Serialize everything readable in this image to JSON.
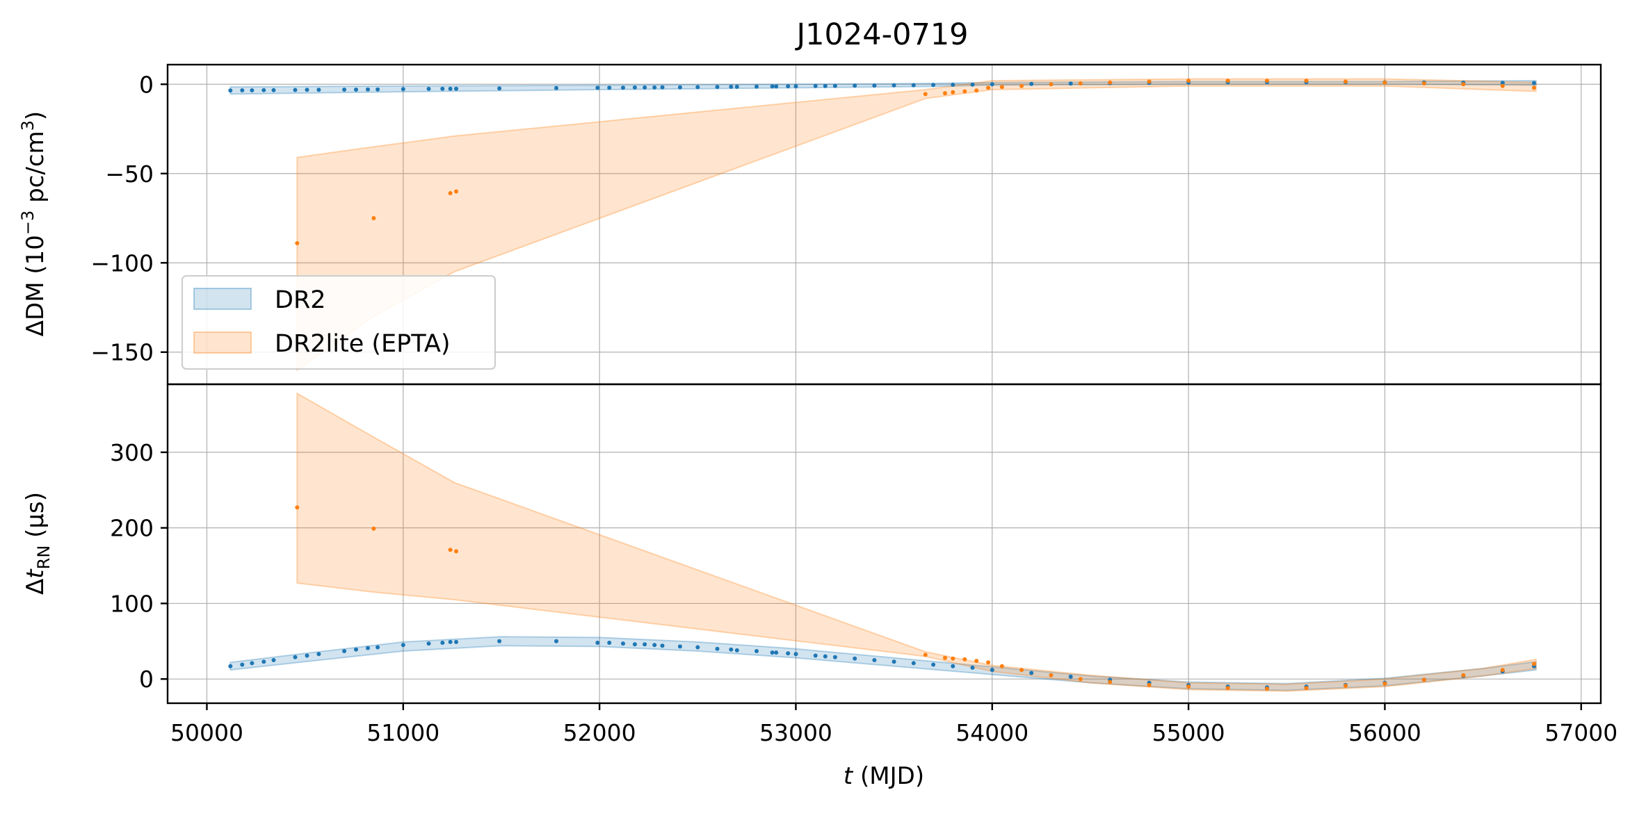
{
  "chart_data": {
    "type": "scatter",
    "title": "J1024-0719",
    "xlabel": {
      "italic": "t",
      "rest": " (MJD)"
    },
    "x_ticks": [
      50000,
      51000,
      52000,
      53000,
      54000,
      55000,
      56000,
      57000
    ],
    "xlim": [
      49800,
      57100
    ],
    "legend": {
      "placement": "lower-left of top panel",
      "entries": [
        "DR2",
        "DR2lite (EPTA)"
      ]
    },
    "colors": {
      "DR2": "#1f77b4",
      "DR2lite (EPTA)": "#ff7f0e"
    },
    "grid": true,
    "panels": [
      {
        "id": "dm",
        "ylabel": {
          "pre": "ΔDM (10",
          "sup1": "−3",
          "mid": " pc/cm",
          "sup2": "3",
          "post": ")"
        },
        "ylim": [
          -168,
          11
        ],
        "y_ticks": [
          0,
          -50,
          -100,
          -150
        ],
        "series": [
          {
            "name": "DR2",
            "band": {
              "x": [
                50120,
                51000,
                52000,
                53000,
                53700,
                54000,
                55000,
                56000,
                56770
              ],
              "lo": [
                -5.5,
                -4.2,
                -3,
                -2,
                -1.2,
                -0.5,
                0,
                0,
                -0.5
              ],
              "hi": [
                -1.5,
                -1,
                -0.6,
                0,
                0.5,
                1,
                1.5,
                1.5,
                2
              ]
            },
            "points": [
              [
                50120,
                -3.5
              ],
              [
                50180,
                -3.4
              ],
              [
                50230,
                -3.4
              ],
              [
                50290,
                -3.3
              ],
              [
                50340,
                -3.3
              ],
              [
                50450,
                -3.2
              ],
              [
                50510,
                -3.1
              ],
              [
                50570,
                -3.1
              ],
              [
                50700,
                -3
              ],
              [
                50760,
                -3
              ],
              [
                50820,
                -2.9
              ],
              [
                50870,
                -2.9
              ],
              [
                51000,
                -2.7
              ],
              [
                51130,
                -2.6
              ],
              [
                51200,
                -2.5
              ],
              [
                51240,
                -2.5
              ],
              [
                51270,
                -2.5
              ],
              [
                51490,
                -2.3
              ],
              [
                51780,
                -2.1
              ],
              [
                51990,
                -2
              ],
              [
                52050,
                -1.9
              ],
              [
                52120,
                -1.9
              ],
              [
                52180,
                -1.8
              ],
              [
                52230,
                -1.8
              ],
              [
                52280,
                -1.8
              ],
              [
                52320,
                -1.7
              ],
              [
                52410,
                -1.7
              ],
              [
                52500,
                -1.6
              ],
              [
                52600,
                -1.5
              ],
              [
                52670,
                -1.4
              ],
              [
                52700,
                -1.4
              ],
              [
                52800,
                -1.3
              ],
              [
                52880,
                -1.2
              ],
              [
                52900,
                -1.2
              ],
              [
                52960,
                -1.1
              ],
              [
                53000,
                -1.1
              ],
              [
                53100,
                -1
              ],
              [
                53150,
                -1
              ],
              [
                53200,
                -0.9
              ],
              [
                53300,
                -0.8
              ],
              [
                53400,
                -0.7
              ],
              [
                53500,
                -0.6
              ],
              [
                53600,
                -0.5
              ],
              [
                53700,
                -0.4
              ],
              [
                53800,
                -0.3
              ],
              [
                53900,
                -0.2
              ],
              [
                54000,
                0
              ],
              [
                54200,
                0.2
              ],
              [
                54400,
                0.4
              ],
              [
                54600,
                0.6
              ],
              [
                54800,
                0.8
              ],
              [
                55000,
                1
              ],
              [
                55200,
                1.1
              ],
              [
                55400,
                1.2
              ],
              [
                55600,
                1.2
              ],
              [
                55800,
                1.2
              ],
              [
                56000,
                1.1
              ],
              [
                56200,
                1
              ],
              [
                56400,
                0.9
              ],
              [
                56600,
                0.8
              ],
              [
                56760,
                0.7
              ]
            ]
          },
          {
            "name": "DR2lite (EPTA)",
            "band": {
              "x": [
                50460,
                50850,
                51260,
                53660,
                54000,
                55000,
                55500,
                56000,
                56770
              ],
              "lo": [
                -160,
                -130,
                -105,
                -8,
                -3,
                -1,
                -1,
                -1,
                -4
              ],
              "hi": [
                -41,
                -35,
                -29,
                -3,
                2,
                3,
                3,
                3,
                1
              ]
            },
            "points": [
              [
                50460,
                -89
              ],
              [
                50850,
                -75
              ],
              [
                51240,
                -61
              ],
              [
                51270,
                -60
              ],
              [
                53660,
                -5.5
              ],
              [
                53760,
                -5
              ],
              [
                53800,
                -4.5
              ],
              [
                53860,
                -4
              ],
              [
                53920,
                -3.5
              ],
              [
                53980,
                -2
              ],
              [
                54050,
                -1.5
              ],
              [
                54150,
                -1
              ],
              [
                54300,
                0
              ],
              [
                54450,
                0.5
              ],
              [
                54600,
                1
              ],
              [
                54800,
                1.5
              ],
              [
                55000,
                2
              ],
              [
                55200,
                2
              ],
              [
                55400,
                2
              ],
              [
                55600,
                2
              ],
              [
                55800,
                1.5
              ],
              [
                56000,
                1
              ],
              [
                56200,
                0.5
              ],
              [
                56400,
                0
              ],
              [
                56600,
                -1
              ],
              [
                56760,
                -2
              ]
            ]
          }
        ]
      },
      {
        "id": "rn",
        "ylabel": {
          "pre": "Δ",
          "it": "t",
          "sub": "RN",
          "post": " (μs)"
        },
        "ylim": [
          -32,
          390
        ],
        "y_ticks": [
          0,
          100,
          200,
          300
        ],
        "series": [
          {
            "name": "DR2",
            "band": {
              "x": [
                50120,
                50500,
                51000,
                51500,
                52000,
                52500,
                53000,
                53500,
                54000,
                54500,
                55000,
                55500,
                56000,
                56500,
                56770
              ],
              "lo": [
                12,
                23,
                37,
                44,
                43,
                37,
                28,
                17,
                6,
                -5,
                -13,
                -15,
                -9,
                4,
                12
              ],
              "hi": [
                22,
                34,
                49,
                56,
                55,
                49,
                40,
                28,
                16,
                4,
                -4,
                -6,
                1,
                14,
                23
              ]
            },
            "points": [
              [
                50120,
                17
              ],
              [
                50180,
                19
              ],
              [
                50230,
                21
              ],
              [
                50290,
                23
              ],
              [
                50340,
                25
              ],
              [
                50450,
                29
              ],
              [
                50510,
                31
              ],
              [
                50570,
                33
              ],
              [
                50700,
                37
              ],
              [
                50760,
                39
              ],
              [
                50820,
                41
              ],
              [
                50870,
                42
              ],
              [
                51000,
                45
              ],
              [
                51130,
                47
              ],
              [
                51200,
                48
              ],
              [
                51240,
                49
              ],
              [
                51270,
                49
              ],
              [
                51490,
                50
              ],
              [
                51780,
                50
              ],
              [
                51990,
                48
              ],
              [
                52050,
                48
              ],
              [
                52120,
                47
              ],
              [
                52180,
                46
              ],
              [
                52230,
                46
              ],
              [
                52280,
                45
              ],
              [
                52320,
                44
              ],
              [
                52410,
                43
              ],
              [
                52500,
                42
              ],
              [
                52600,
                40
              ],
              [
                52670,
                39
              ],
              [
                52700,
                38
              ],
              [
                52800,
                37
              ],
              [
                52880,
                35
              ],
              [
                52900,
                35
              ],
              [
                52960,
                34
              ],
              [
                53000,
                33
              ],
              [
                53100,
                31
              ],
              [
                53150,
                30
              ],
              [
                53200,
                29
              ],
              [
                53300,
                27
              ],
              [
                53400,
                25
              ],
              [
                53500,
                23
              ],
              [
                53600,
                21
              ],
              [
                53700,
                19
              ],
              [
                53800,
                17
              ],
              [
                53900,
                15
              ],
              [
                54000,
                12
              ],
              [
                54200,
                8
              ],
              [
                54400,
                3
              ],
              [
                54600,
                -1
              ],
              [
                54800,
                -5
              ],
              [
                55000,
                -8
              ],
              [
                55200,
                -10
              ],
              [
                55400,
                -11
              ],
              [
                55600,
                -10
              ],
              [
                55800,
                -8
              ],
              [
                56000,
                -5
              ],
              [
                56200,
                -1
              ],
              [
                56400,
                4
              ],
              [
                56600,
                10
              ],
              [
                56760,
                17
              ]
            ]
          },
          {
            "name": "DR2lite (EPTA)",
            "band": {
              "x": [
                50460,
                50850,
                51260,
                53660,
                54000,
                54500,
                55000,
                55500,
                56000,
                56500,
                56770
              ],
              "lo": [
                127,
                115,
                105,
                30,
                10,
                -5,
                -14,
                -16,
                -10,
                4,
                14
              ],
              "hi": [
                378,
                320,
                260,
                36,
                18,
                5,
                -5,
                -7,
                0,
                14,
                26
              ]
            },
            "points": [
              [
                50460,
                227
              ],
              [
                50850,
                199
              ],
              [
                51240,
                171
              ],
              [
                51270,
                169
              ],
              [
                53660,
                32
              ],
              [
                53760,
                28
              ],
              [
                53800,
                27
              ],
              [
                53860,
                26
              ],
              [
                53920,
                24
              ],
              [
                53980,
                22
              ],
              [
                54050,
                17
              ],
              [
                54150,
                12
              ],
              [
                54300,
                5
              ],
              [
                54450,
                0
              ],
              [
                54600,
                -4
              ],
              [
                54800,
                -8
              ],
              [
                55000,
                -10
              ],
              [
                55200,
                -12
              ],
              [
                55400,
                -13
              ],
              [
                55600,
                -12
              ],
              [
                55800,
                -9
              ],
              [
                56000,
                -6
              ],
              [
                56200,
                -1
              ],
              [
                56400,
                5
              ],
              [
                56600,
                12
              ],
              [
                56760,
                20
              ]
            ]
          }
        ]
      }
    ]
  }
}
